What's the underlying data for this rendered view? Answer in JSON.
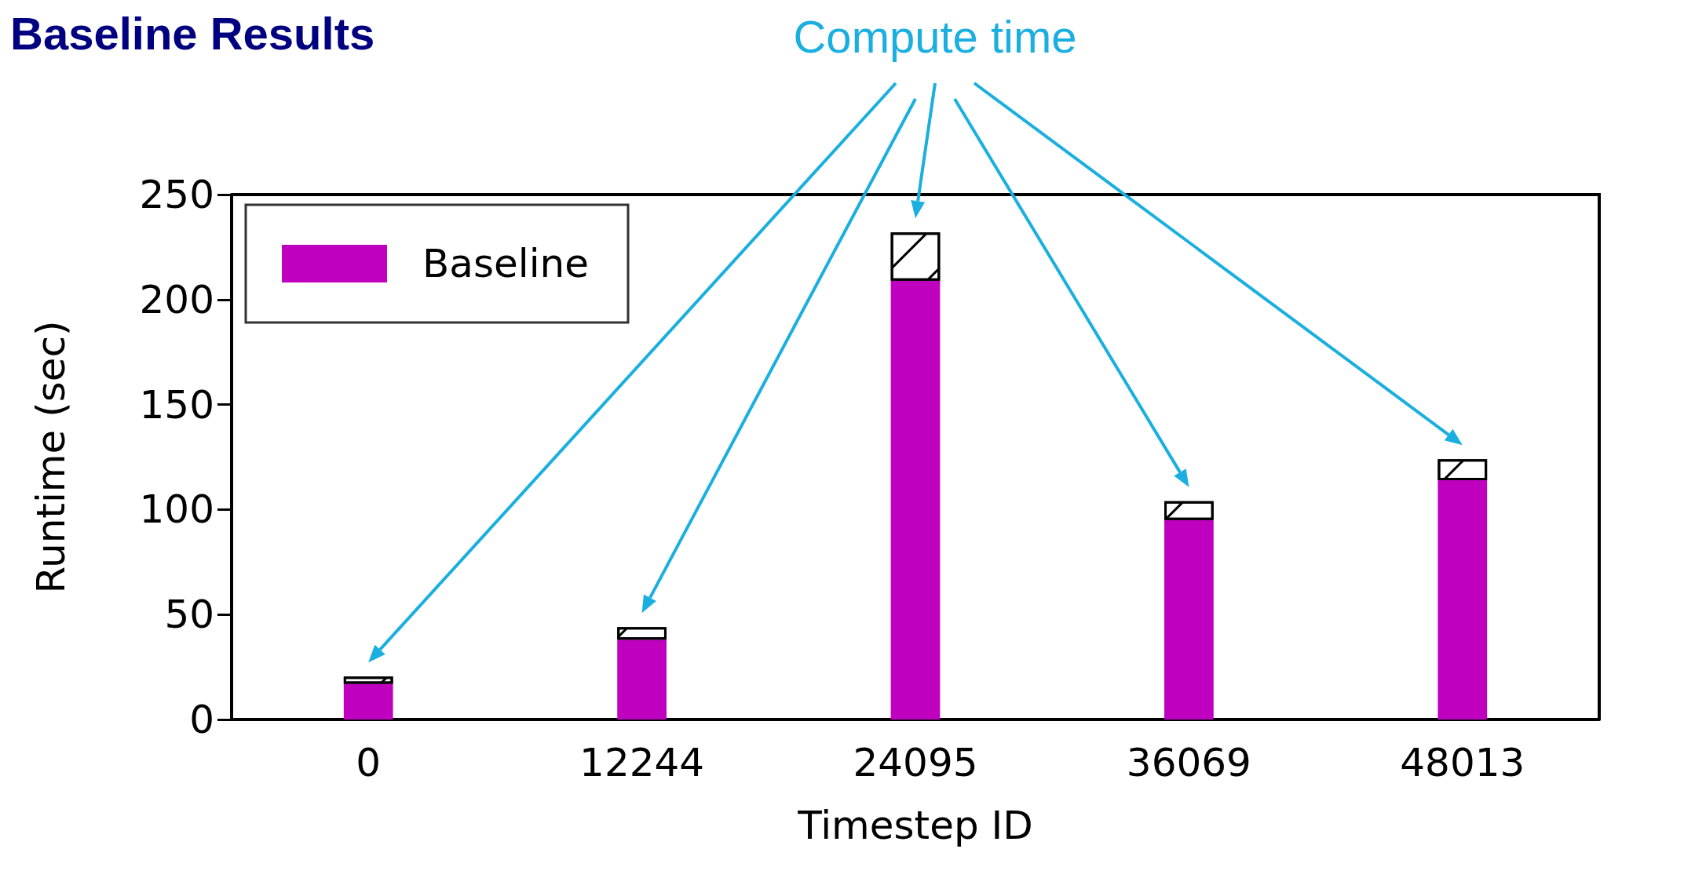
{
  "chart_data": {
    "type": "bar",
    "title": "Baseline Results",
    "xlabel": "Timestep ID",
    "ylabel": "Runtime (sec)",
    "categories": [
      "0",
      "12244",
      "24095",
      "36069",
      "48013"
    ],
    "stacked": true,
    "series": [
      {
        "name": "Baseline",
        "color": "#bf00bf",
        "values": [
          17,
          38,
          209,
          95,
          114
        ]
      },
      {
        "color": "#ffffff",
        "values": [
          3.5,
          6,
          23,
          9,
          10
        ]
      }
    ],
    "ylim": [
      0,
      250
    ],
    "yticks": [
      0,
      50,
      100,
      150,
      200,
      250
    ],
    "grid": false,
    "legend": "top left",
    "annotations": [
      "Compute time"
    ]
  }
}
